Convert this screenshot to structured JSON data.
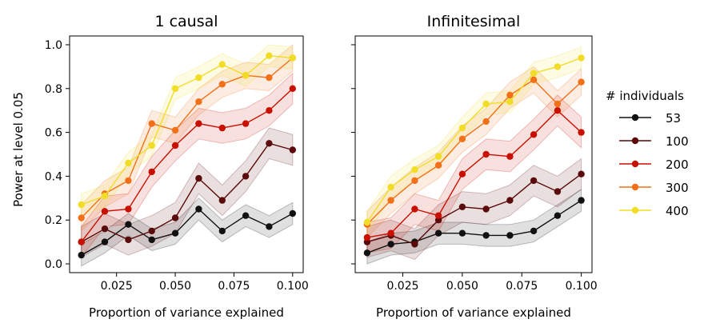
{
  "chart_data": {
    "type": "line",
    "shared_x": [
      0.01,
      0.02,
      0.03,
      0.04,
      0.05,
      0.06,
      0.07,
      0.08,
      0.09,
      0.1
    ],
    "ylabel": "Power at level 0.05",
    "legend": {
      "title": "# individuals",
      "placement": "right",
      "entries": [
        {
          "name": "53",
          "color": "#111111"
        },
        {
          "name": "100",
          "color": "#5a0a0a"
        },
        {
          "name": "200",
          "color": "#c80f00"
        },
        {
          "name": "300",
          "color": "#f27017"
        },
        {
          "name": "400",
          "color": "#f1dd26"
        }
      ]
    },
    "panels": [
      {
        "title": "1 causal",
        "xlabel": "Proportion of variance explained",
        "xlim": [
          0.005,
          0.1045
        ],
        "ylim": [
          -0.04,
          1.04
        ],
        "xticks": [
          0.025,
          0.05,
          0.075,
          0.1
        ],
        "xtick_labels": [
          "0.025",
          "0.050",
          "0.075",
          "0.100"
        ],
        "yticks": [
          0.0,
          0.2,
          0.4,
          0.6,
          0.8,
          1.0
        ],
        "ytick_labels": [
          "0.0",
          "0.2",
          "0.4",
          "0.6",
          "0.8",
          "1.0"
        ],
        "series": [
          {
            "name": "53",
            "values": [
              0.04,
              0.1,
              0.18,
              0.11,
              0.14,
              0.25,
              0.15,
              0.22,
              0.17,
              0.23
            ],
            "band": 0.05
          },
          {
            "name": "100",
            "values": [
              0.1,
              0.16,
              0.11,
              0.15,
              0.21,
              0.39,
              0.29,
              0.4,
              0.55,
              0.52
            ],
            "band": 0.07
          },
          {
            "name": "200",
            "values": [
              0.1,
              0.24,
              0.25,
              0.42,
              0.54,
              0.64,
              0.62,
              0.64,
              0.7,
              0.8
            ],
            "band": 0.07
          },
          {
            "name": "300",
            "values": [
              0.21,
              0.32,
              0.38,
              0.64,
              0.61,
              0.74,
              0.82,
              0.86,
              0.85,
              0.94
            ],
            "band": 0.06
          },
          {
            "name": "400",
            "values": [
              0.27,
              0.31,
              0.46,
              0.54,
              0.8,
              0.85,
              0.91,
              0.86,
              0.95,
              0.94
            ],
            "band": 0.05
          }
        ]
      },
      {
        "title": "Infinitesimal",
        "xlabel": "Proportion of variance explained",
        "xlim": [
          0.005,
          0.1045
        ],
        "ylim": [
          -0.04,
          1.04
        ],
        "xticks": [
          0.025,
          0.05,
          0.075,
          0.1
        ],
        "xtick_labels": [
          "0.025",
          "0.050",
          "0.075",
          "0.100"
        ],
        "yticks": [
          0.0,
          0.2,
          0.4,
          0.6,
          0.8,
          1.0
        ],
        "ytick_labels": [],
        "series": [
          {
            "name": "53",
            "values": [
              0.05,
              0.09,
              0.1,
              0.14,
              0.14,
              0.13,
              0.13,
              0.15,
              0.22,
              0.29
            ],
            "band": 0.05
          },
          {
            "name": "100",
            "values": [
              0.1,
              0.13,
              0.09,
              0.2,
              0.26,
              0.25,
              0.29,
              0.38,
              0.33,
              0.41
            ],
            "band": 0.07
          },
          {
            "name": "200",
            "values": [
              0.12,
              0.14,
              0.25,
              0.22,
              0.41,
              0.5,
              0.49,
              0.59,
              0.7,
              0.6
            ],
            "band": 0.07
          },
          {
            "name": "300",
            "values": [
              0.18,
              0.29,
              0.38,
              0.45,
              0.57,
              0.65,
              0.77,
              0.84,
              0.73,
              0.83
            ],
            "band": 0.06
          },
          {
            "name": "400",
            "values": [
              0.19,
              0.35,
              0.43,
              0.49,
              0.62,
              0.73,
              0.74,
              0.87,
              0.9,
              0.94
            ],
            "band": 0.05
          }
        ]
      }
    ]
  }
}
